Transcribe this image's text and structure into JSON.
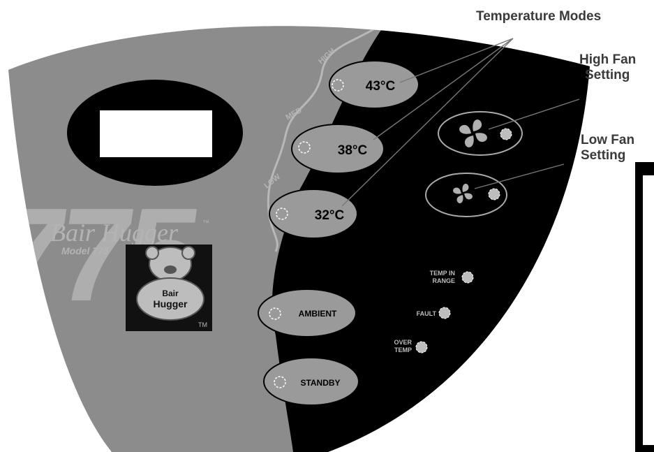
{
  "callouts": {
    "temperature_modes": "Temperature Modes",
    "high_fan_line1": "High Fan",
    "high_fan_line2": "Setting",
    "low_fan_line1": "Low Fan",
    "low_fan_line2": "Setting"
  },
  "brand": {
    "name": "Bair Hugger",
    "trademark": "™",
    "model_label": "Model 775",
    "big_number": "775",
    "bear_line1": "Bair",
    "bear_line2": "Hugger",
    "bear_tm": "TM"
  },
  "temperature_levels": {
    "high": "HIGH",
    "med": "MED",
    "low": "LOW"
  },
  "buttons": {
    "temp_high": "43°C",
    "temp_med": "38°C",
    "temp_low": "32°C",
    "ambient": "AMBIENT",
    "standby": "STANDBY"
  },
  "indicators": {
    "temp_in_range_line1": "TEMP IN",
    "temp_in_range_line2": "RANGE",
    "fault": "FAULT",
    "over_temp_line1": "OVER",
    "over_temp_line2": "TEMP"
  },
  "colors": {
    "panel_gray": "#8c8c8c",
    "panel_black": "#000000",
    "button_gray": "#9a9a9a",
    "logo_gray": "#b4b4b4",
    "callout_text": "#3a3a3a"
  }
}
